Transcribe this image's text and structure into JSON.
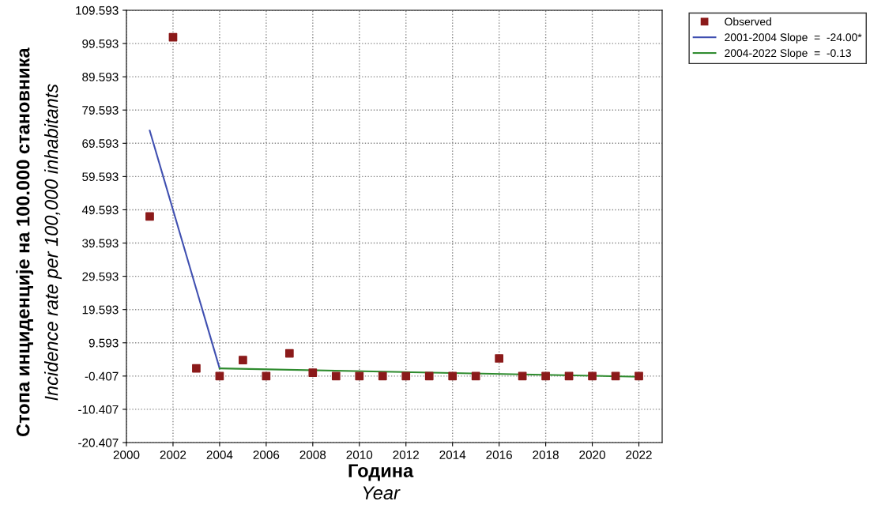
{
  "chart_data": {
    "type": "scatter",
    "xlabel": "Година\nYear",
    "ylabel": "Стопа инциденције на 100.000 становника\nIncidence rate per 100,000 inhabitants",
    "xlim": [
      2000,
      2023
    ],
    "xticks": [
      2000,
      2002,
      2004,
      2006,
      2008,
      2010,
      2012,
      2014,
      2016,
      2018,
      2020,
      2022
    ],
    "ylim": [
      -20.407,
      109.593
    ],
    "yticks": [
      -20.407,
      -10.407,
      -0.407,
      9.593,
      19.593,
      29.593,
      39.593,
      49.593,
      59.593,
      69.593,
      79.593,
      89.593,
      99.593,
      109.593
    ],
    "grid": true,
    "legend": "top right",
    "series": [
      {
        "name": "Observed",
        "marker": "square",
        "color": "#8b1a1a",
        "x": [
          2001,
          2002,
          2003,
          2004,
          2005,
          2006,
          2007,
          2008,
          2009,
          2010,
          2011,
          2012,
          2013,
          2014,
          2015,
          2016,
          2017,
          2018,
          2019,
          2020,
          2021,
          2022
        ],
        "values": [
          47.6,
          101.5,
          1.9,
          -0.4,
          4.4,
          -0.4,
          6.4,
          0.6,
          -0.4,
          -0.4,
          -0.4,
          -0.4,
          -0.4,
          -0.4,
          -0.4,
          4.9,
          -0.4,
          -0.4,
          -0.4,
          -0.4,
          -0.4,
          -0.4
        ]
      },
      {
        "name": "2001-2004 Slope  =  -24.00*",
        "type": "line",
        "color": "#3f4fb0",
        "x": [
          2001,
          2004
        ],
        "values": [
          73.4,
          1.9
        ],
        "marker": "none"
      },
      {
        "name": "2004-2022 Slope  =  -0.13",
        "type": "line",
        "color": "#2e8b2e",
        "x": [
          2004,
          2022
        ],
        "values": [
          1.9,
          -0.6
        ],
        "marker": "none"
      }
    ]
  }
}
